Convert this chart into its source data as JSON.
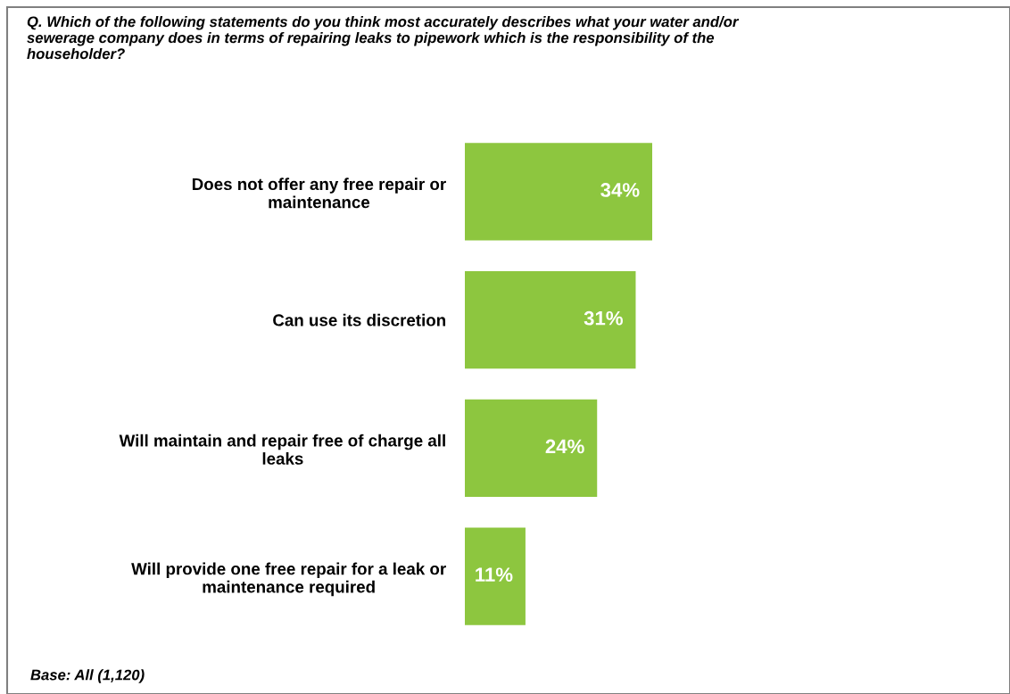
{
  "chart_data": {
    "type": "bar",
    "orientation": "horizontal",
    "title": "Q. Which of the following statements do you think most accurately describes what your water and/or\nsewerage company does in terms of repairing leaks to pipework which is the responsibility of the\nhouseholder?",
    "categories": [
      "Does not offer any free repair or\nmaintenance",
      "Can use its discretion",
      "Will maintain and repair free of charge all\nleaks",
      "Will provide one free repair for a leak or\nmaintenance required"
    ],
    "values": [
      34,
      31,
      24,
      11
    ],
    "color": "#8dc63f",
    "data_labels": true,
    "value_labels": [
      "34%",
      "31%",
      "24%",
      "11%"
    ],
    "annotations": [
      "Base: All (1,120)"
    ],
    "tick_labels": "y",
    "grid": false,
    "legend": false
  }
}
